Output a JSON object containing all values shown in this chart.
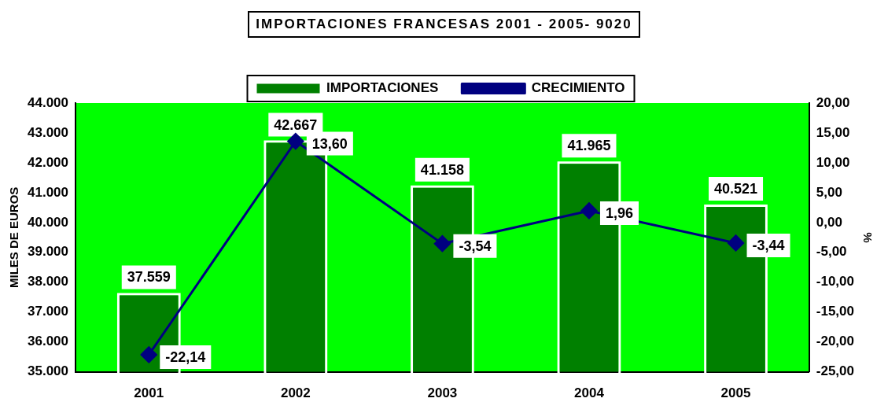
{
  "chart_data": {
    "type": "bar",
    "title": "IMPORTACIONES FRANCESAS 2001 - 2005- 9020",
    "ylabel": "MILES DE EUROS",
    "y2label": "%",
    "categories": [
      "2001",
      "2002",
      "2003",
      "2004",
      "2005"
    ],
    "series": [
      {
        "name": "IMPORTACIONES",
        "color": "#008000",
        "values": [
          37559,
          42667,
          41158,
          41965,
          40521
        ],
        "value_labels": [
          "37.559",
          "42.667",
          "41.158",
          "41.965",
          "40.521"
        ]
      },
      {
        "name": "CRECIMIENTO",
        "type": "line",
        "axis": "y2",
        "color": "#000080",
        "marker": "diamond",
        "values": [
          -22.14,
          13.6,
          -3.54,
          1.96,
          -3.44
        ],
        "value_labels": [
          "-22,14",
          "13,60",
          "-3,54",
          "1,96",
          "-3,44"
        ]
      }
    ],
    "ylim": [
      35000,
      44000
    ],
    "yticks": [
      {
        "value": 35000,
        "label": "35.000"
      },
      {
        "value": 36000,
        "label": "36.000"
      },
      {
        "value": 37000,
        "label": "37.000"
      },
      {
        "value": 38000,
        "label": "38.000"
      },
      {
        "value": 39000,
        "label": "39.000"
      },
      {
        "value": 40000,
        "label": "40.000"
      },
      {
        "value": 41000,
        "label": "41.000"
      },
      {
        "value": 42000,
        "label": "42.000"
      },
      {
        "value": 43000,
        "label": "43.000"
      },
      {
        "value": 44000,
        "label": "44.000"
      }
    ],
    "y2lim": [
      -25,
      20
    ],
    "y2ticks": [
      {
        "value": -25,
        "label": "-25,00"
      },
      {
        "value": -20,
        "label": "-20,00"
      },
      {
        "value": -15,
        "label": "-15,00"
      },
      {
        "value": -10,
        "label": "-10,00"
      },
      {
        "value": -5,
        "label": "-5,00"
      },
      {
        "value": 0,
        "label": "0,00"
      },
      {
        "value": 5,
        "label": "5,00"
      },
      {
        "value": 10,
        "label": "10,00"
      },
      {
        "value": 15,
        "label": "15,00"
      },
      {
        "value": 20,
        "label": "20,00"
      }
    ],
    "grid": false,
    "legend": "top"
  }
}
